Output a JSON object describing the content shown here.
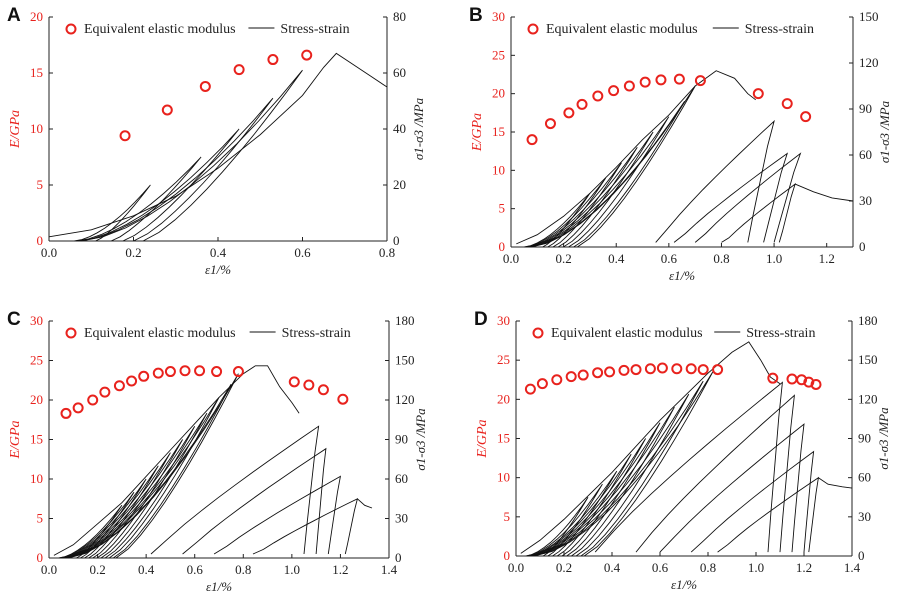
{
  "figure": {
    "colors": {
      "modulus": "#e8221d",
      "curve": "#111111",
      "axis": "#222222"
    }
  },
  "chart_data": [
    {
      "panel": "A",
      "type": "scatter+line",
      "legend": {
        "modulus": "Equivalent elastic modulus",
        "curve": "Stress-strain",
        "placement": "top"
      },
      "xlabel": "ε1/%",
      "ylabel_left": "E/GPa",
      "ylabel_right": "σ1-σ3 /MPa",
      "xlim": [
        0,
        0.8
      ],
      "xticks": [
        0,
        0.2,
        0.4,
        0.6,
        0.8
      ],
      "xtick_labels": [
        "0.0",
        "0.2",
        "0.4",
        "0.6",
        "0.8"
      ],
      "ylim_left": [
        0,
        20
      ],
      "yticks_left": [
        0,
        5,
        10,
        15,
        20
      ],
      "ylim_right": [
        0,
        80
      ],
      "yticks_right": [
        0,
        20,
        40,
        60,
        80
      ],
      "modulus_points": {
        "x": [
          0.18,
          0.28,
          0.37,
          0.45,
          0.53,
          0.61
        ],
        "y": [
          9.4,
          11.7,
          13.8,
          15.3,
          16.2,
          16.6
        ]
      },
      "peaks": [
        [
          0.24,
          20
        ],
        [
          0.36,
          30
        ],
        [
          0.45,
          40
        ],
        [
          0.53,
          51
        ],
        [
          0.6,
          61
        ]
      ],
      "cycle_start": 0.06,
      "final_curve": [
        [
          0.0,
          1.5
        ],
        [
          0.1,
          4
        ],
        [
          0.2,
          9
        ],
        [
          0.3,
          16
        ],
        [
          0.4,
          26
        ],
        [
          0.5,
          38
        ],
        [
          0.6,
          52
        ],
        [
          0.65,
          62
        ],
        [
          0.68,
          67
        ],
        [
          0.71,
          64
        ],
        [
          0.76,
          59
        ],
        [
          0.8,
          55
        ]
      ]
    },
    {
      "panel": "B",
      "type": "scatter+line",
      "legend": {
        "modulus": "Equivalent elastic modulus",
        "curve": "Stress-strain",
        "placement": "top"
      },
      "xlabel": "ε1/%",
      "ylabel_left": "E/GPa",
      "ylabel_right": "σ1-σ3 /MPa",
      "xlim": [
        0,
        1.3
      ],
      "xticks": [
        0,
        0.2,
        0.4,
        0.6,
        0.8,
        1.0,
        1.2
      ],
      "xtick_labels": [
        "0.0",
        "0.2",
        "0.4",
        "0.6",
        "0.8",
        "1.0",
        "1.2"
      ],
      "ylim_left": [
        0,
        30
      ],
      "yticks_left": [
        0,
        5,
        10,
        15,
        20,
        25,
        30
      ],
      "ylim_right": [
        0,
        150
      ],
      "yticks_right": [
        0,
        30,
        60,
        90,
        120,
        150
      ],
      "modulus_points": {
        "x": [
          0.08,
          0.15,
          0.22,
          0.27,
          0.33,
          0.39,
          0.45,
          0.51,
          0.57,
          0.64,
          0.72,
          0.94,
          1.05,
          1.12
        ],
        "y": [
          14.0,
          16.1,
          17.5,
          18.6,
          19.7,
          20.4,
          21.0,
          21.5,
          21.8,
          21.9,
          21.7,
          20.0,
          18.7,
          17.0
        ]
      },
      "peaks": [
        [
          0.3,
          35
        ],
        [
          0.36,
          45
        ],
        [
          0.42,
          55
        ],
        [
          0.48,
          65
        ],
        [
          0.54,
          75
        ],
        [
          0.6,
          85
        ],
        [
          0.66,
          95
        ],
        [
          0.7,
          105
        ]
      ],
      "cycle_start": 0.05,
      "envelope": [
        [
          0.02,
          2
        ],
        [
          0.1,
          8
        ],
        [
          0.2,
          20
        ],
        [
          0.3,
          35
        ],
        [
          0.4,
          52
        ],
        [
          0.5,
          70
        ],
        [
          0.6,
          86
        ],
        [
          0.7,
          105
        ],
        [
          0.78,
          115
        ],
        [
          0.85,
          110
        ],
        [
          0.9,
          100
        ],
        [
          0.93,
          96
        ]
      ],
      "postpeak_loops": [
        {
          "start": 0.55,
          "peak": [
            1.0,
            82
          ],
          "end": [
            0.9,
            3
          ]
        },
        {
          "start": 0.62,
          "peak": [
            1.05,
            61
          ],
          "end": [
            0.96,
            3
          ]
        },
        {
          "start": 0.7,
          "peak": [
            1.1,
            61
          ],
          "end": [
            1.0,
            3
          ]
        },
        {
          "start": 0.8,
          "peak": [
            1.08,
            41
          ],
          "end": [
            1.02,
            3
          ]
        }
      ],
      "tail": [
        [
          1.08,
          41
        ],
        [
          1.15,
          36
        ],
        [
          1.22,
          32
        ],
        [
          1.3,
          30
        ]
      ]
    },
    {
      "panel": "C",
      "type": "scatter+line",
      "legend": {
        "modulus": "Equivalent elastic modulus",
        "curve": "Stress-strain",
        "placement": "top"
      },
      "xlabel": "ε1/%",
      "ylabel_left": "E/GPa",
      "ylabel_right": "σ1-σ3 /MPa",
      "xlim": [
        0,
        1.4
      ],
      "xticks": [
        0,
        0.2,
        0.4,
        0.6,
        0.8,
        1.0,
        1.2,
        1.4
      ],
      "xtick_labels": [
        "0.0",
        "0.2",
        "0.4",
        "0.6",
        "0.8",
        "1.0",
        "1.2",
        "1.4"
      ],
      "ylim_left": [
        0,
        30
      ],
      "yticks_left": [
        0,
        5,
        10,
        15,
        20,
        25,
        30
      ],
      "ylim_right": [
        0,
        180
      ],
      "yticks_right": [
        0,
        30,
        60,
        90,
        120,
        150,
        180
      ],
      "modulus_points": {
        "x": [
          0.07,
          0.12,
          0.18,
          0.23,
          0.29,
          0.34,
          0.39,
          0.45,
          0.5,
          0.56,
          0.62,
          0.69,
          0.78,
          1.01,
          1.07,
          1.13,
          1.21
        ],
        "y": [
          18.3,
          19.0,
          20.0,
          21.0,
          21.8,
          22.4,
          23.0,
          23.4,
          23.6,
          23.7,
          23.7,
          23.6,
          23.6,
          22.3,
          21.9,
          21.3,
          20.1
        ]
      },
      "peaks": [
        [
          0.3,
          40
        ],
        [
          0.35,
          50
        ],
        [
          0.4,
          60
        ],
        [
          0.45,
          70
        ],
        [
          0.5,
          80
        ],
        [
          0.55,
          90
        ],
        [
          0.6,
          100
        ],
        [
          0.65,
          110
        ],
        [
          0.7,
          122
        ],
        [
          0.75,
          132
        ],
        [
          0.78,
          140
        ]
      ],
      "cycle_start": 0.04,
      "envelope": [
        [
          0.02,
          2
        ],
        [
          0.1,
          10
        ],
        [
          0.2,
          26
        ],
        [
          0.3,
          42
        ],
        [
          0.4,
          62
        ],
        [
          0.5,
          82
        ],
        [
          0.6,
          102
        ],
        [
          0.7,
          122
        ],
        [
          0.8,
          140
        ],
        [
          0.85,
          146
        ],
        [
          0.9,
          146
        ],
        [
          0.95,
          130
        ],
        [
          1.0,
          118
        ],
        [
          1.03,
          110
        ]
      ],
      "postpeak_loops": [
        {
          "start": 0.42,
          "peak": [
            1.11,
            100
          ],
          "end": [
            1.05,
            3
          ]
        },
        {
          "start": 0.55,
          "peak": [
            1.14,
            83
          ],
          "end": [
            1.1,
            3
          ]
        },
        {
          "start": 0.68,
          "peak": [
            1.2,
            62
          ],
          "end": [
            1.15,
            3
          ]
        },
        {
          "start": 0.84,
          "peak": [
            1.27,
            45
          ],
          "end": [
            1.22,
            3
          ]
        }
      ],
      "tail": [
        [
          1.27,
          45
        ],
        [
          1.3,
          40
        ],
        [
          1.33,
          38
        ]
      ]
    },
    {
      "panel": "D",
      "type": "scatter+line",
      "legend": {
        "modulus": "Equivalent elastic modulus",
        "curve": "Stress-strain",
        "placement": "top"
      },
      "xlabel": "ε1/%",
      "ylabel_left": "E/GPa",
      "ylabel_right": "σ1-σ3 /MPa",
      "xlim": [
        0,
        1.4
      ],
      "xticks": [
        0,
        0.2,
        0.4,
        0.6,
        0.8,
        1.0,
        1.2,
        1.4
      ],
      "xtick_labels": [
        "0.0",
        "0.2",
        "0.4",
        "0.6",
        "0.8",
        "1.0",
        "1.2",
        "1.4"
      ],
      "ylim_left": [
        0,
        30
      ],
      "yticks_left": [
        0,
        5,
        10,
        15,
        20,
        25,
        30
      ],
      "ylim_right": [
        0,
        180
      ],
      "yticks_right": [
        0,
        30,
        60,
        90,
        120,
        150,
        180
      ],
      "modulus_points": {
        "x": [
          0.06,
          0.11,
          0.17,
          0.23,
          0.28,
          0.34,
          0.39,
          0.45,
          0.5,
          0.56,
          0.61,
          0.67,
          0.73,
          0.78,
          0.84,
          1.07,
          1.15,
          1.19,
          1.22,
          1.25
        ],
        "y": [
          21.3,
          22.0,
          22.5,
          22.9,
          23.1,
          23.4,
          23.5,
          23.7,
          23.8,
          23.9,
          24.0,
          23.9,
          23.9,
          23.8,
          23.8,
          22.7,
          22.6,
          22.5,
          22.2,
          21.9
        ]
      },
      "peaks": [
        [
          0.3,
          45
        ],
        [
          0.36,
          55
        ],
        [
          0.42,
          65
        ],
        [
          0.48,
          78
        ],
        [
          0.54,
          90
        ],
        [
          0.6,
          102
        ],
        [
          0.66,
          114
        ],
        [
          0.72,
          124
        ],
        [
          0.78,
          134
        ],
        [
          0.82,
          141
        ]
      ],
      "cycle_start": 0.04,
      "envelope": [
        [
          0.02,
          2
        ],
        [
          0.1,
          12
        ],
        [
          0.2,
          28
        ],
        [
          0.3,
          46
        ],
        [
          0.4,
          64
        ],
        [
          0.5,
          84
        ],
        [
          0.6,
          104
        ],
        [
          0.7,
          122
        ],
        [
          0.8,
          140
        ],
        [
          0.9,
          156
        ],
        [
          0.97,
          164
        ],
        [
          1.02,
          150
        ],
        [
          1.06,
          137
        ],
        [
          1.1,
          132
        ]
      ],
      "postpeak_loops": [
        {
          "start": 0.33,
          "peak": [
            1.11,
            133
          ],
          "end": [
            1.05,
            3
          ]
        },
        {
          "start": 0.5,
          "peak": [
            1.16,
            123
          ],
          "end": [
            1.1,
            3
          ]
        },
        {
          "start": 0.6,
          "peak": [
            1.2,
            101
          ],
          "end": [
            1.15,
            3
          ]
        },
        {
          "start": 0.73,
          "peak": [
            1.24,
            80
          ],
          "end": [
            1.2,
            3
          ]
        },
        {
          "start": 0.84,
          "peak": [
            1.26,
            60
          ],
          "end": [
            1.22,
            3
          ]
        }
      ],
      "tail": [
        [
          1.26,
          60
        ],
        [
          1.3,
          55
        ],
        [
          1.36,
          53
        ],
        [
          1.4,
          52
        ]
      ]
    }
  ]
}
